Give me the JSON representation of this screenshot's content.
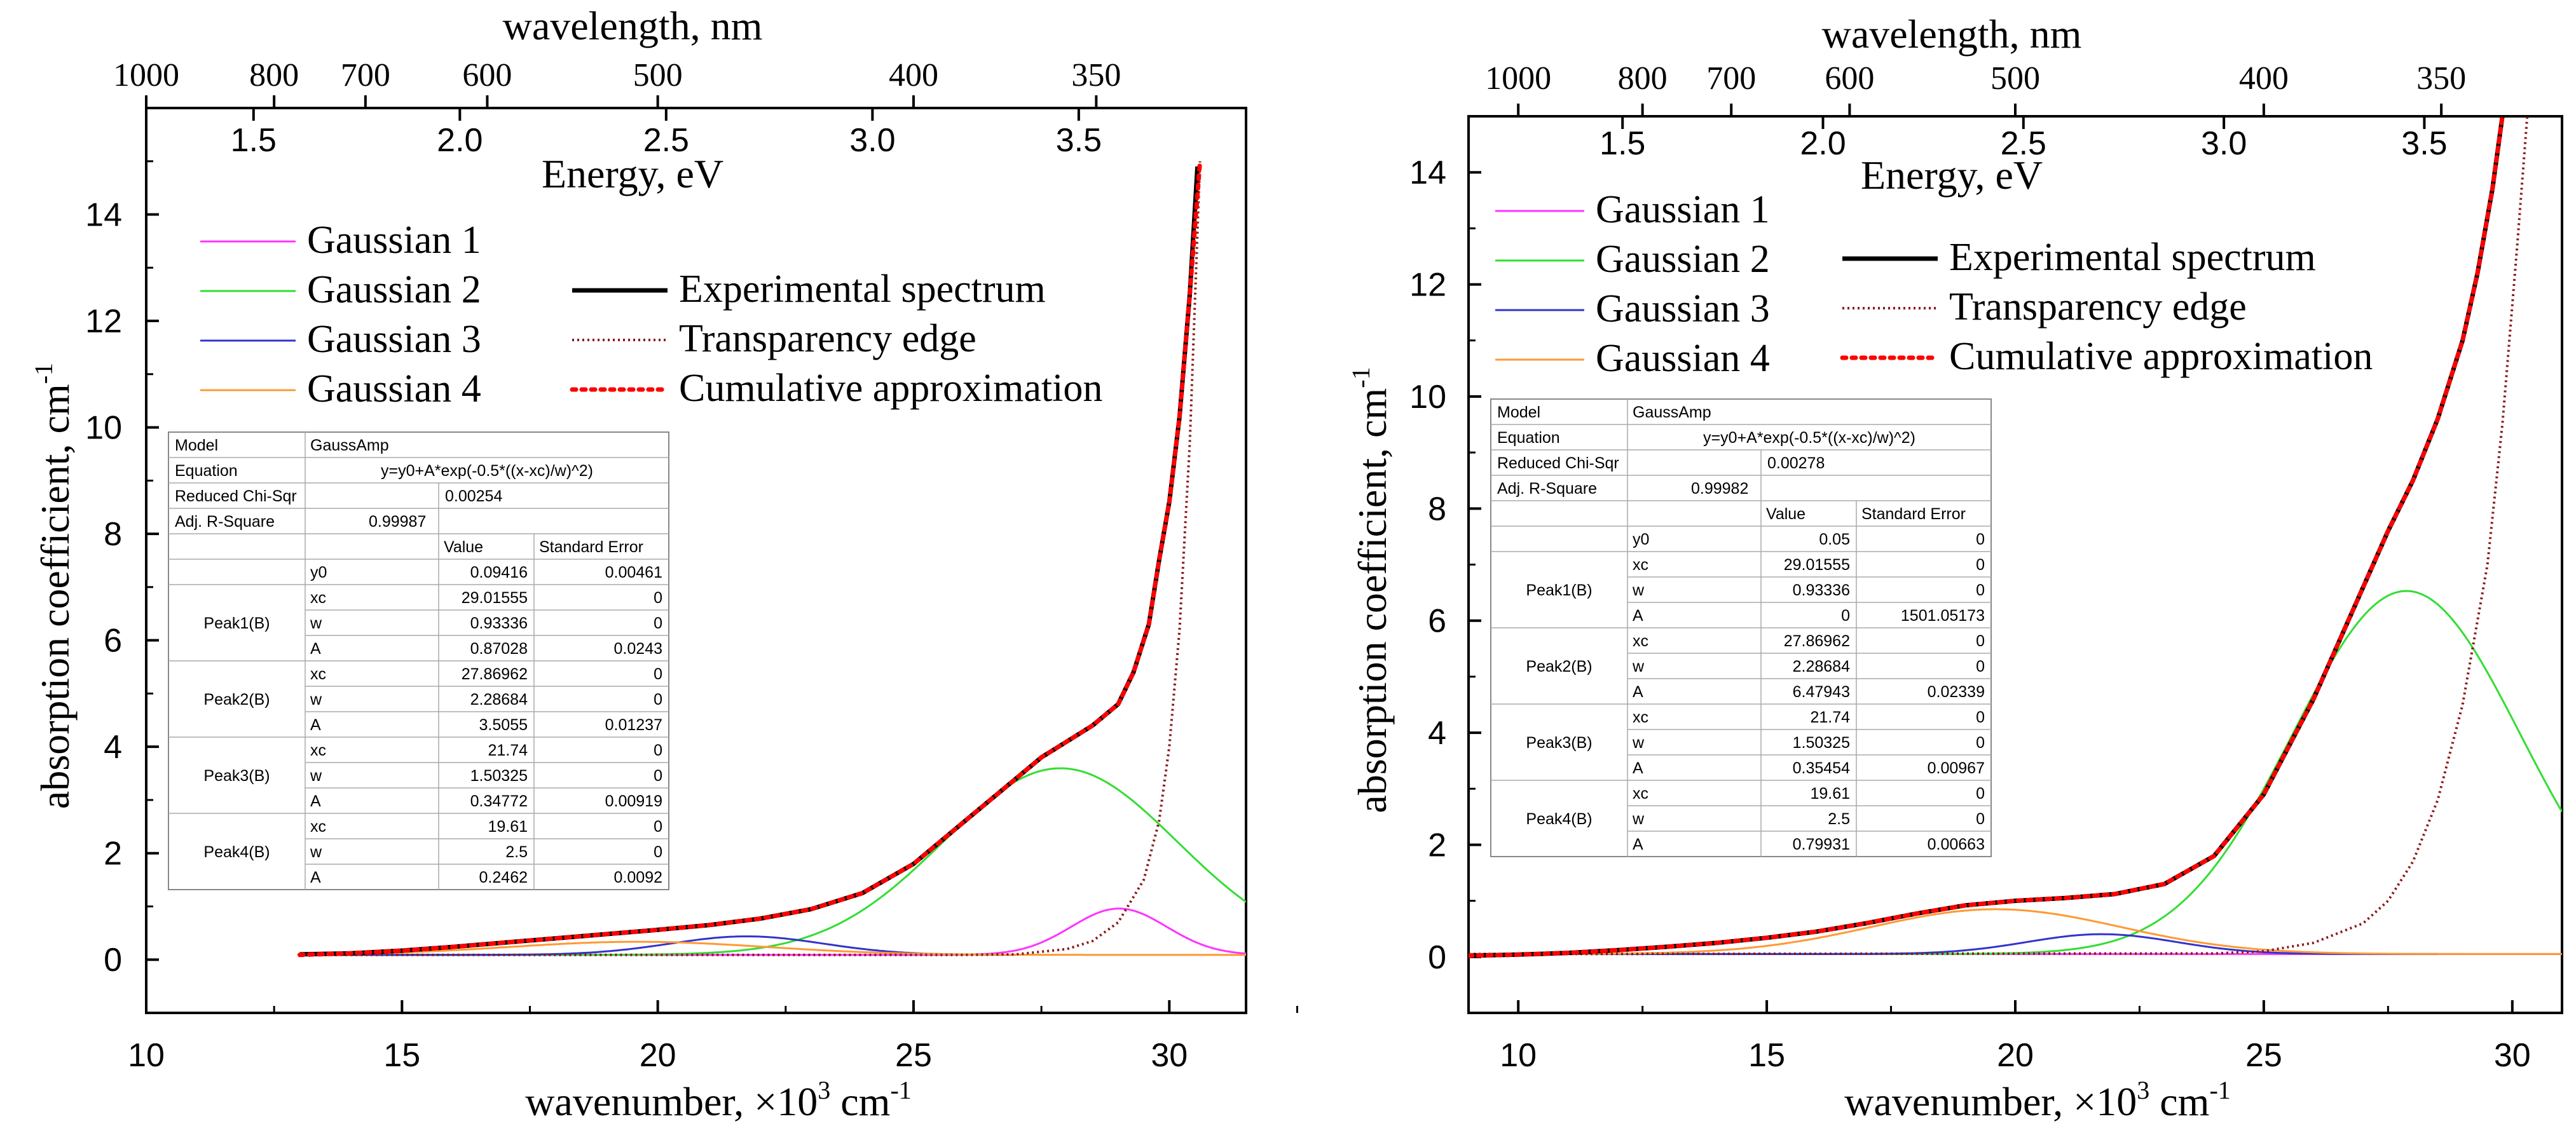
{
  "chart_data": [
    {
      "type": "line",
      "title": "",
      "xlabel": "wavenumber, ×10",
      "xlabel_sup1": "3",
      "xlabel_mid": " cm",
      "xlabel_sup2": "-1",
      "ylabel": "absorption coefficient, cm",
      "ylabel_sup": "-1",
      "xlim": [
        10,
        31.5
      ],
      "ylim": [
        -1,
        16
      ],
      "xticks": [
        10,
        15,
        20,
        25,
        30
      ],
      "yticks": [
        0,
        2,
        4,
        6,
        8,
        10,
        12,
        14
      ],
      "top_axis1": {
        "label": "wavelength, nm",
        "ticks": [
          {
            "label": "1000",
            "k": 10.0
          },
          {
            "label": "800",
            "k": 12.5
          },
          {
            "label": "700",
            "k": 14.2857
          },
          {
            "label": "600",
            "k": 16.6667
          },
          {
            "label": "500",
            "k": 20.0
          },
          {
            "label": "400",
            "k": 25.0
          },
          {
            "label": "350",
            "k": 28.5714
          }
        ]
      },
      "top_axis2": {
        "label": "Energy, eV",
        "ticks": [
          {
            "label": "1.5",
            "k": 12.098
          },
          {
            "label": "2.0",
            "k": 16.131
          },
          {
            "label": "2.5",
            "k": 20.164
          },
          {
            "label": "3.0",
            "k": 24.197
          },
          {
            "label": "3.5",
            "k": 28.23
          }
        ]
      },
      "legend_left": [
        {
          "name": "Gaussian 1",
          "color": "#ff33ff"
        },
        {
          "name": "Gaussian 2",
          "color": "#33dd33"
        },
        {
          "name": "Gaussian 3",
          "color": "#3333cc"
        },
        {
          "name": "Gaussian 4",
          "color": "#ff9933"
        }
      ],
      "legend_right": [
        {
          "name": "Experimental spectrum",
          "color": "#000000",
          "style": "solid"
        },
        {
          "name": "Transparency edge",
          "color": "#8b1a1a",
          "style": "dotted"
        },
        {
          "name": "Cumulative approximation",
          "color": "#ff0000",
          "style": "dotted-bold"
        }
      ],
      "fit_table": {
        "model_label": "Model",
        "model": "GaussAmp",
        "equation_label": "Equation",
        "equation": "y=y0+A*exp(-0.5*((x-xc)/w)^2)",
        "chisqr_label": "Reduced Chi-Sqr",
        "chisqr": "0.00254",
        "rsq_label": "Adj. R-Square",
        "rsq": "0.99987",
        "value_header": "Value",
        "error_header": "Standard Error",
        "y0": {
          "name": "y0",
          "value": "0.09416",
          "error": "0.00461"
        },
        "peaks": [
          {
            "name": "Peak1(B)",
            "params": [
              {
                "name": "xc",
                "value": "29.01555",
                "error": "0"
              },
              {
                "name": "w",
                "value": "0.93336",
                "error": "0"
              },
              {
                "name": "A",
                "value": "0.87028",
                "error": "0.0243"
              }
            ]
          },
          {
            "name": "Peak2(B)",
            "params": [
              {
                "name": "xc",
                "value": "27.86962",
                "error": "0"
              },
              {
                "name": "w",
                "value": "2.28684",
                "error": "0"
              },
              {
                "name": "A",
                "value": "3.5055",
                "error": "0.01237"
              }
            ]
          },
          {
            "name": "Peak3(B)",
            "params": [
              {
                "name": "xc",
                "value": "21.74",
                "error": "0"
              },
              {
                "name": "w",
                "value": "1.50325",
                "error": "0"
              },
              {
                "name": "A",
                "value": "0.34772",
                "error": "0.00919"
              }
            ]
          },
          {
            "name": "Peak4(B)",
            "params": [
              {
                "name": "xc",
                "value": "19.61",
                "error": "0"
              },
              {
                "name": "w",
                "value": "2.5",
                "error": "0"
              },
              {
                "name": "A",
                "value": "0.2462",
                "error": "0.0092"
              }
            ]
          }
        ]
      },
      "series": [
        {
          "name": "Gaussian 1",
          "color": "#ff33ff",
          "kind": "gaussian",
          "baseline": 0.09,
          "xc": 29.01555,
          "w": 0.93336,
          "A": 0.87028,
          "x_range": [
            13,
            31.5
          ]
        },
        {
          "name": "Gaussian 2",
          "color": "#33dd33",
          "kind": "gaussian",
          "baseline": 0.09,
          "xc": 27.86962,
          "w": 2.28684,
          "A": 3.5055,
          "x_range": [
            13,
            31.5
          ]
        },
        {
          "name": "Gaussian 3",
          "color": "#3333cc",
          "kind": "gaussian",
          "baseline": 0.09,
          "xc": 21.74,
          "w": 1.50325,
          "A": 0.34772,
          "x_range": [
            13,
            27
          ]
        },
        {
          "name": "Gaussian 4",
          "color": "#ff9933",
          "kind": "gaussian",
          "baseline": 0.09,
          "xc": 19.61,
          "w": 2.5,
          "A": 0.2462,
          "x_range": [
            13,
            31.5
          ]
        },
        {
          "name": "Transparency edge",
          "color": "#8b1a1a",
          "kind": "points",
          "x": [
            13,
            26,
            27,
            28,
            28.5,
            29,
            29.5,
            29.8,
            30.0,
            30.2,
            30.4,
            30.6
          ],
          "y": [
            0.09,
            0.09,
            0.1,
            0.2,
            0.35,
            0.7,
            1.5,
            2.6,
            4.0,
            6.2,
            9.7,
            15.0
          ]
        },
        {
          "name": "Experimental spectrum",
          "color": "#000000",
          "kind": "points",
          "x": [
            13,
            14,
            15,
            16,
            17,
            18,
            19,
            20,
            21,
            22,
            23,
            24,
            25,
            26,
            27,
            27.5,
            28,
            28.5,
            29,
            29.3,
            29.6,
            29.8,
            30.0,
            30.2,
            30.4,
            30.55
          ],
          "y": [
            0.1,
            0.12,
            0.17,
            0.24,
            0.32,
            0.4,
            0.48,
            0.56,
            0.65,
            0.77,
            0.95,
            1.25,
            1.8,
            2.6,
            3.4,
            3.8,
            4.1,
            4.4,
            4.8,
            5.4,
            6.3,
            7.5,
            8.6,
            10.2,
            12.5,
            14.9
          ]
        },
        {
          "name": "Cumulative approximation",
          "color": "#ff0000",
          "kind": "points",
          "x": [
            13,
            14,
            15,
            16,
            17,
            18,
            19,
            20,
            21,
            22,
            23,
            24,
            25,
            26,
            27,
            27.5,
            28,
            28.5,
            29,
            29.3,
            29.6,
            29.8,
            30.0,
            30.2,
            30.4,
            30.6
          ],
          "y": [
            0.09,
            0.12,
            0.17,
            0.24,
            0.32,
            0.4,
            0.48,
            0.56,
            0.65,
            0.77,
            0.95,
            1.25,
            1.8,
            2.6,
            3.4,
            3.8,
            4.1,
            4.4,
            4.8,
            5.4,
            6.3,
            7.5,
            8.6,
            10.2,
            12.5,
            15.0
          ]
        }
      ]
    },
    {
      "type": "line",
      "title": "",
      "xlabel": "wavenumber, ×10",
      "xlabel_sup1": "3",
      "xlabel_mid": " cm",
      "xlabel_sup2": "-1",
      "ylabel": "absorption coefficient, cm",
      "ylabel_sup": "-1",
      "xlim": [
        9,
        31
      ],
      "ylim": [
        -1,
        15
      ],
      "xticks": [
        10,
        15,
        20,
        25,
        30
      ],
      "yticks": [
        0,
        2,
        4,
        6,
        8,
        10,
        12,
        14
      ],
      "top_axis1": {
        "label": "wavelength, nm",
        "ticks": [
          {
            "label": "1000",
            "k": 10.0
          },
          {
            "label": "800",
            "k": 12.5
          },
          {
            "label": "700",
            "k": 14.2857
          },
          {
            "label": "600",
            "k": 16.6667
          },
          {
            "label": "500",
            "k": 20.0
          },
          {
            "label": "400",
            "k": 25.0
          },
          {
            "label": "350",
            "k": 28.5714
          }
        ]
      },
      "top_axis2": {
        "label": "Energy, eV",
        "ticks": [
          {
            "label": "1.5",
            "k": 12.098
          },
          {
            "label": "2.0",
            "k": 16.131
          },
          {
            "label": "2.5",
            "k": 20.164
          },
          {
            "label": "3.0",
            "k": 24.197
          },
          {
            "label": "3.5",
            "k": 28.23
          }
        ]
      },
      "legend_left": [
        {
          "name": "Gaussian 1",
          "color": "#ff33ff"
        },
        {
          "name": "Gaussian 2",
          "color": "#33dd33"
        },
        {
          "name": "Gaussian 3",
          "color": "#3333cc"
        },
        {
          "name": "Gaussian 4",
          "color": "#ff9933"
        }
      ],
      "legend_right": [
        {
          "name": "Experimental spectrum",
          "color": "#000000",
          "style": "solid"
        },
        {
          "name": "Transparency edge",
          "color": "#8b1a1a",
          "style": "dotted"
        },
        {
          "name": "Cumulative approximation",
          "color": "#ff0000",
          "style": "dotted-bold"
        }
      ],
      "fit_table": {
        "model_label": "Model",
        "model": "GaussAmp",
        "equation_label": "Equation",
        "equation": "y=y0+A*exp(-0.5*((x-xc)/w)^2)",
        "chisqr_label": "Reduced Chi-Sqr",
        "chisqr": "0.00278",
        "rsq_label": "Adj. R-Square",
        "rsq": "0.99982",
        "value_header": "Value",
        "error_header": "Standard Error",
        "y0": {
          "name": "y0",
          "value": "0.05",
          "error": "0"
        },
        "peaks": [
          {
            "name": "Peak1(B)",
            "params": [
              {
                "name": "xc",
                "value": "29.01555",
                "error": "0"
              },
              {
                "name": "w",
                "value": "0.93336",
                "error": "0"
              },
              {
                "name": "A",
                "value": "0",
                "error": "1501.05173"
              }
            ]
          },
          {
            "name": "Peak2(B)",
            "params": [
              {
                "name": "xc",
                "value": "27.86962",
                "error": "0"
              },
              {
                "name": "w",
                "value": "2.28684",
                "error": "0"
              },
              {
                "name": "A",
                "value": "6.47943",
                "error": "0.02339"
              }
            ]
          },
          {
            "name": "Peak3(B)",
            "params": [
              {
                "name": "xc",
                "value": "21.74",
                "error": "0"
              },
              {
                "name": "w",
                "value": "1.50325",
                "error": "0"
              },
              {
                "name": "A",
                "value": "0.35454",
                "error": "0.00967"
              }
            ]
          },
          {
            "name": "Peak4(B)",
            "params": [
              {
                "name": "xc",
                "value": "19.61",
                "error": "0"
              },
              {
                "name": "w",
                "value": "2.5",
                "error": "0"
              },
              {
                "name": "A",
                "value": "0.79931",
                "error": "0.00663"
              }
            ]
          }
        ]
      },
      "series": [
        {
          "name": "Gaussian 1",
          "color": "#ff33ff",
          "kind": "gaussian",
          "baseline": 0.05,
          "xc": 29.01555,
          "w": 0.93336,
          "A": 0,
          "x_range": [
            9,
            31
          ]
        },
        {
          "name": "Gaussian 2",
          "color": "#33dd33",
          "kind": "gaussian",
          "baseline": 0.05,
          "xc": 27.86962,
          "w": 2.28684,
          "A": 6.47943,
          "x_range": [
            9,
            31
          ]
        },
        {
          "name": "Gaussian 3",
          "color": "#3333cc",
          "kind": "gaussian",
          "baseline": 0.05,
          "xc": 21.74,
          "w": 1.50325,
          "A": 0.35454,
          "x_range": [
            9,
            28.5
          ]
        },
        {
          "name": "Gaussian 4",
          "color": "#ff9933",
          "kind": "gaussian",
          "baseline": 0.05,
          "xc": 19.61,
          "w": 2.5,
          "A": 0.79931,
          "x_range": [
            9,
            31
          ]
        },
        {
          "name": "Transparency edge",
          "color": "#8b1a1a",
          "kind": "points",
          "x": [
            9,
            24,
            25,
            26,
            27,
            27.5,
            28,
            28.5,
            29,
            29.5,
            29.8,
            30.1,
            30.3
          ],
          "y": [
            0.05,
            0.06,
            0.1,
            0.25,
            0.6,
            1.0,
            1.7,
            2.8,
            4.5,
            7.0,
            9.5,
            12.7,
            15.0
          ]
        },
        {
          "name": "Experimental spectrum",
          "color": "#000000",
          "kind": "points",
          "x": [
            9,
            10,
            11,
            12,
            13,
            14,
            15,
            16,
            17,
            18,
            19,
            20,
            21,
            22,
            23,
            24,
            25,
            26,
            27,
            27.5,
            28,
            28.5,
            29,
            29.3,
            29.6,
            29.8
          ],
          "y": [
            0.02,
            0.04,
            0.07,
            0.12,
            0.18,
            0.25,
            0.34,
            0.45,
            0.6,
            0.77,
            0.92,
            1.0,
            1.05,
            1.12,
            1.3,
            1.8,
            2.9,
            4.6,
            6.6,
            7.6,
            8.5,
            9.6,
            11.0,
            12.2,
            13.7,
            15.0
          ]
        },
        {
          "name": "Cumulative approximation",
          "color": "#ff0000",
          "kind": "points",
          "x": [
            9,
            10,
            11,
            12,
            13,
            14,
            15,
            16,
            17,
            18,
            19,
            20,
            21,
            22,
            23,
            24,
            25,
            26,
            27,
            27.5,
            28,
            28.5,
            29,
            29.3,
            29.6,
            29.8
          ],
          "y": [
            0.02,
            0.04,
            0.07,
            0.12,
            0.18,
            0.25,
            0.34,
            0.45,
            0.6,
            0.77,
            0.92,
            1.0,
            1.05,
            1.12,
            1.3,
            1.8,
            2.9,
            4.6,
            6.6,
            7.6,
            8.5,
            9.6,
            11.0,
            12.2,
            13.7,
            15.0
          ]
        }
      ]
    }
  ]
}
